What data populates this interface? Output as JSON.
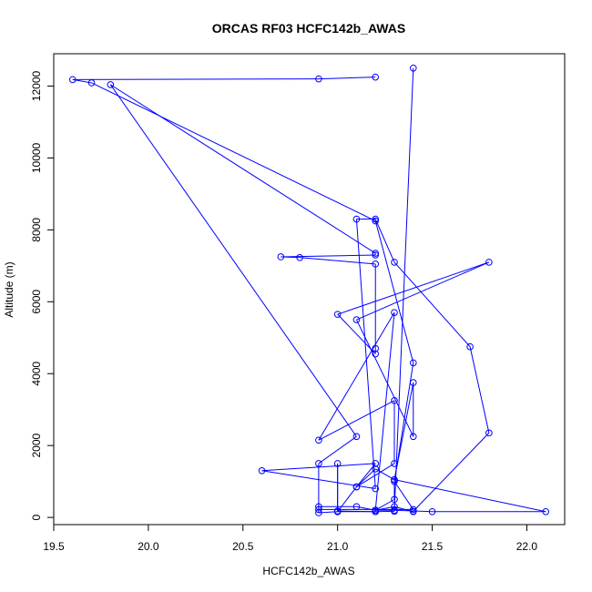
{
  "chart_data": {
    "type": "line",
    "title": "ORCAS RF03 HCFC142b_AWAS",
    "xlabel": "HCFC142b_AWAS",
    "ylabel": "Altitude (m)",
    "xlim": [
      19.5,
      22.2
    ],
    "ylim": [
      -200,
      12900
    ],
    "xticks": [
      19.5,
      20.0,
      20.5,
      21.0,
      21.5,
      22.0
    ],
    "xtick_labels": [
      "19.5",
      "20.0",
      "20.5",
      "21.0",
      "21.5",
      "22.0"
    ],
    "yticks": [
      0,
      2000,
      4000,
      6000,
      8000,
      10000,
      12000
    ],
    "ytick_labels": [
      "0",
      "2000",
      "4000",
      "6000",
      "8000",
      "10000",
      "12000"
    ],
    "grid": false,
    "series": [
      {
        "color": "#0000ff",
        "points": [
          [
            21.2,
            12250
          ],
          [
            20.9,
            12200
          ],
          [
            19.6,
            12180
          ],
          [
            19.7,
            12090
          ],
          [
            21.2,
            8250
          ],
          [
            21.4,
            4300
          ],
          [
            21.3,
            1000
          ],
          [
            21.4,
            220
          ],
          [
            20.9,
            220
          ],
          [
            20.9,
            1500
          ],
          [
            21.1,
            2250
          ],
          [
            19.8,
            12040
          ],
          [
            21.2,
            7350
          ],
          [
            21.2,
            7300
          ],
          [
            20.7,
            7250
          ],
          [
            20.8,
            7230
          ],
          [
            21.2,
            7050
          ],
          [
            21.2,
            4700
          ],
          [
            21.2,
            4550
          ],
          [
            21.0,
            5650
          ],
          [
            21.8,
            7100
          ],
          [
            21.1,
            5500
          ],
          [
            21.4,
            2250
          ],
          [
            21.4,
            3750
          ],
          [
            21.3,
            1050
          ],
          [
            21.3,
            500
          ],
          [
            21.2,
            200
          ],
          [
            21.2,
            160
          ],
          [
            21.0,
            180
          ],
          [
            21.0,
            1500
          ],
          [
            21.0,
            160
          ],
          [
            20.9,
            130
          ],
          [
            20.9,
            300
          ],
          [
            21.1,
            300
          ],
          [
            21.2,
            200
          ],
          [
            21.3,
            300
          ],
          [
            21.4,
            160
          ],
          [
            21.4,
            170
          ],
          [
            21.8,
            2350
          ],
          [
            21.7,
            4750
          ],
          [
            21.3,
            7100
          ],
          [
            21.2,
            8300
          ],
          [
            21.1,
            8300
          ],
          [
            21.2,
            800
          ],
          [
            20.6,
            1300
          ],
          [
            21.2,
            1500
          ],
          [
            21.1,
            850
          ],
          [
            21.3,
            1500
          ],
          [
            21.3,
            3250
          ],
          [
            20.9,
            2150
          ],
          [
            21.3,
            5700
          ],
          [
            21.2,
            200
          ],
          [
            21.3,
            200
          ],
          [
            21.5,
            160
          ],
          [
            22.1,
            160
          ],
          [
            21.3,
            1050
          ],
          [
            21.2,
            1350
          ],
          [
            21.1,
            850
          ],
          [
            21.0,
            160
          ],
          [
            21.2,
            160
          ],
          [
            21.3,
            170
          ],
          [
            21.4,
            12500
          ]
        ]
      }
    ]
  }
}
